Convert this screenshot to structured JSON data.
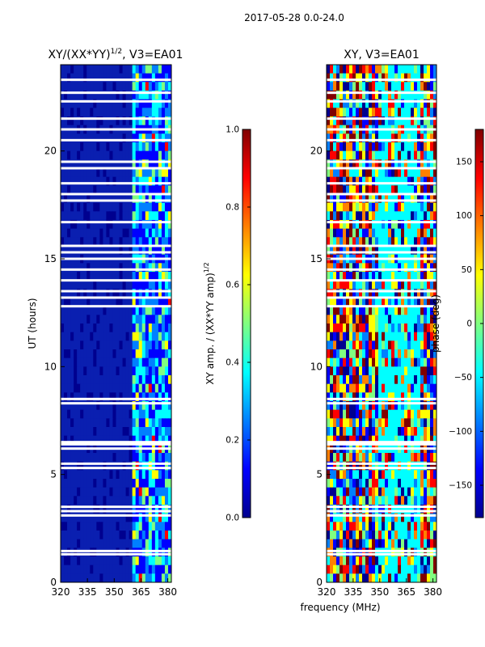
{
  "suptitle": "2017-05-28 0.0-24.0",
  "xlabel_shared": "frequency (MHz)",
  "colors": {
    "white_gap": "#ffffff",
    "amp_base": "#0a1fb0",
    "jet": [
      "#00008f",
      "#0000ff",
      "#0080ff",
      "#00ffff",
      "#80ff80",
      "#ffff00",
      "#ff8000",
      "#ff0000",
      "#800000"
    ]
  },
  "chart_data": [
    {
      "type": "heatmap",
      "title": "XY/(XX*YY)",
      "title_exp": "1/2",
      "title_suffix": ", V3=EA01",
      "xlabel": "",
      "ylabel": "UT (hours)",
      "xlim": [
        320,
        382
      ],
      "ylim": [
        0,
        24
      ],
      "xticks": [
        320,
        335,
        350,
        365,
        380
      ],
      "yticks": [
        0,
        5,
        10,
        15,
        20
      ],
      "bright_band_mhz": [
        360,
        382
      ],
      "flag_gaps_hours": [
        1.3,
        1.45,
        3.1,
        3.3,
        3.5,
        5.3,
        5.5,
        6.2,
        6.4,
        6.5,
        8.3,
        8.5,
        12.8,
        13.2,
        13.5,
        14.0,
        14.5,
        15.0,
        15.3,
        15.6,
        16.7,
        17.7,
        18.0,
        18.5,
        19.2,
        19.5,
        20.5,
        21.0,
        21.5,
        22.3,
        22.7,
        23.3
      ],
      "colorbar": {
        "label": "XY amp. / (XX*YY amp)",
        "label_exp": "1/2",
        "range": [
          0.0,
          1.0
        ],
        "ticks": [
          "0.0",
          "0.2",
          "0.4",
          "0.6",
          "0.8",
          "1.0"
        ]
      }
    },
    {
      "type": "heatmap",
      "title": "XY, V3=EA01",
      "xlabel": "frequency (MHz)",
      "ylabel": "",
      "xlim": [
        320,
        382
      ],
      "ylim": [
        0,
        24
      ],
      "xticks": [
        320,
        335,
        350,
        365,
        380
      ],
      "yticks": [
        0,
        5,
        10,
        15,
        20
      ],
      "flag_gaps_hours": [
        1.3,
        1.45,
        3.1,
        3.3,
        3.5,
        5.3,
        5.5,
        6.2,
        6.4,
        6.5,
        8.3,
        8.5,
        12.8,
        13.2,
        13.5,
        14.0,
        14.5,
        15.0,
        15.3,
        15.6,
        16.7,
        17.7,
        18.0,
        18.5,
        19.2,
        19.5,
        20.5,
        21.0,
        21.5,
        22.3,
        22.7,
        23.3
      ],
      "colorbar": {
        "label": "phase (deg)",
        "range": [
          -180,
          180
        ],
        "ticks": [
          "−150",
          "−100",
          "−50",
          "0",
          "50",
          "100",
          "150"
        ]
      }
    }
  ]
}
